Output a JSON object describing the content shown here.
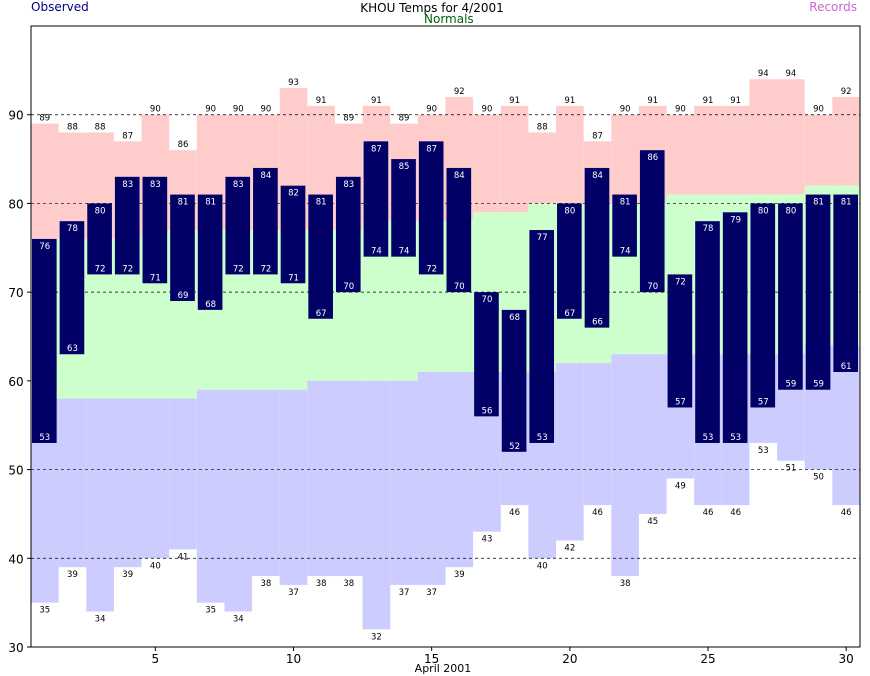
{
  "chart_data": {
    "type": "bar",
    "title": "KHOU Temps for 4/2001",
    "xlabel": "April 2001",
    "ylabel": "",
    "legend": {
      "observed_label": "Observed",
      "normals_label": "Normals",
      "records_label": "Records",
      "placement": "top"
    },
    "colors": {
      "observed": "#000066",
      "observed_text": "#ffffff",
      "normal_band": "#ccffcc",
      "record_high_band": "#ffcccc",
      "record_low_band": "#ccccff",
      "observed_legend": "#000080",
      "normals_legend": "#006600",
      "records_legend": "#cc66cc",
      "grid": "#000000"
    },
    "x": [
      1,
      2,
      3,
      4,
      5,
      6,
      7,
      8,
      9,
      10,
      11,
      12,
      13,
      14,
      15,
      16,
      17,
      18,
      19,
      20,
      21,
      22,
      23,
      24,
      25,
      26,
      27,
      28,
      29,
      30
    ],
    "x_ticks": [
      5,
      10,
      15,
      20,
      25,
      30
    ],
    "ylim": [
      30,
      100
    ],
    "y_ticks": [
      30,
      40,
      50,
      60,
      70,
      80,
      90
    ],
    "grid": "dashed horizontal at 40, 50, 70, 80, 90",
    "observed_high": [
      76,
      78,
      80,
      83,
      83,
      81,
      81,
      83,
      84,
      82,
      81,
      83,
      87,
      85,
      87,
      84,
      70,
      68,
      77,
      80,
      84,
      81,
      86,
      72,
      78,
      79,
      80,
      80,
      81,
      81
    ],
    "observed_low": [
      53,
      63,
      72,
      72,
      71,
      69,
      68,
      72,
      72,
      71,
      67,
      70,
      74,
      74,
      72,
      70,
      56,
      52,
      53,
      67,
      66,
      74,
      70,
      57,
      53,
      53,
      57,
      59,
      59,
      61
    ],
    "normal_high": [
      76,
      76,
      76,
      76,
      77,
      77,
      77,
      77,
      77,
      77,
      77,
      77,
      78,
      78,
      78,
      78,
      79,
      79,
      80,
      80,
      80,
      80,
      80,
      81,
      81,
      81,
      81,
      81,
      82,
      82
    ],
    "normal_low": [
      58,
      58,
      58,
      58,
      58,
      58,
      59,
      59,
      59,
      59,
      60,
      60,
      60,
      60,
      61,
      61,
      61,
      61,
      61,
      62,
      62,
      63,
      63,
      63,
      63,
      63,
      63,
      63,
      64,
      64
    ],
    "record_high": [
      89,
      88,
      88,
      87,
      90,
      86,
      90,
      90,
      90,
      93,
      91,
      89,
      91,
      89,
      90,
      92,
      90,
      91,
      88,
      91,
      87,
      90,
      91,
      90,
      91,
      91,
      94,
      94,
      90,
      92
    ],
    "record_low": [
      35,
      39,
      34,
      39,
      40,
      41,
      35,
      34,
      38,
      37,
      38,
      38,
      32,
      37,
      37,
      39,
      43,
      46,
      40,
      42,
      46,
      38,
      45,
      49,
      46,
      46,
      53,
      51,
      50,
      46
    ]
  }
}
